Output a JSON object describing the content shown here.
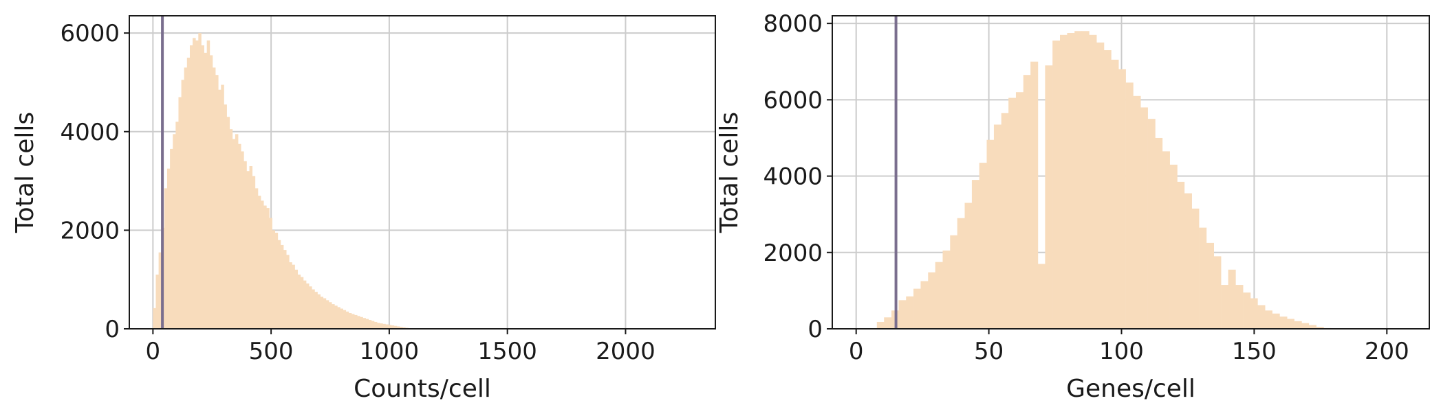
{
  "chart_data": [
    {
      "type": "bar",
      "xlabel": "Counts/cell",
      "ylabel": "Total cells",
      "xlim": [
        -100,
        2380
      ],
      "ylim": [
        0,
        6350
      ],
      "xticks": [
        0,
        500,
        1000,
        1500,
        2000
      ],
      "yticks": [
        0,
        2000,
        4000,
        6000
      ],
      "grid": true,
      "bar_color": "#f8dcbc",
      "threshold_color": "#7a6e8e",
      "threshold": 40,
      "bin_width": 12,
      "bins_x": [
        0,
        12,
        24,
        36,
        48,
        60,
        72,
        84,
        96,
        108,
        120,
        132,
        144,
        156,
        168,
        180,
        192,
        204,
        216,
        228,
        240,
        252,
        264,
        276,
        288,
        300,
        312,
        324,
        336,
        348,
        360,
        372,
        384,
        396,
        408,
        420,
        432,
        444,
        456,
        468,
        480,
        492,
        504,
        516,
        528,
        540,
        552,
        564,
        576,
        588,
        600,
        612,
        624,
        636,
        648,
        660,
        672,
        684,
        696,
        708,
        720,
        732,
        744,
        756,
        768,
        780,
        792,
        804,
        816,
        828,
        840,
        852,
        864,
        876,
        888,
        900,
        912,
        924,
        936,
        948,
        960,
        972,
        984,
        996,
        1008,
        1020,
        1032,
        1044,
        1056,
        1068,
        1080,
        1092,
        1104
      ],
      "values": [
        420,
        1100,
        1550,
        2050,
        2850,
        3250,
        3650,
        3950,
        4200,
        4700,
        5050,
        5300,
        5500,
        5750,
        5900,
        5850,
        6000,
        5750,
        5600,
        5850,
        5550,
        5300,
        5150,
        4850,
        4950,
        4550,
        4300,
        4050,
        3850,
        3950,
        3750,
        3600,
        3400,
        3200,
        3300,
        3100,
        2850,
        2700,
        2600,
        2500,
        2450,
        2250,
        2000,
        1950,
        1800,
        1700,
        1600,
        1500,
        1350,
        1300,
        1200,
        1100,
        1050,
        980,
        920,
        860,
        800,
        750,
        700,
        650,
        620,
        580,
        540,
        500,
        470,
        440,
        410,
        380,
        350,
        320,
        300,
        280,
        260,
        240,
        220,
        200,
        180,
        160,
        140,
        120,
        110,
        100,
        90,
        80,
        70,
        60,
        50,
        40,
        30,
        20,
        10,
        5,
        2
      ]
    },
    {
      "type": "bar",
      "xlabel": "Genes/cell",
      "ylabel": "Total cells",
      "xlim": [
        -9,
        216
      ],
      "ylim": [
        0,
        8200
      ],
      "xticks": [
        0,
        50,
        100,
        150,
        200
      ],
      "yticks": [
        0,
        2000,
        4000,
        6000,
        8000
      ],
      "grid": true,
      "bar_color": "#f8dcbc",
      "threshold_color": "#7a6e8e",
      "threshold": 15,
      "bin_width": 2.76,
      "bins_x": [
        5.0,
        7.8,
        10.5,
        13.3,
        16.0,
        18.8,
        21.6,
        24.3,
        27.1,
        29.8,
        32.6,
        35.4,
        38.1,
        40.9,
        43.6,
        46.4,
        49.2,
        51.9,
        54.7,
        57.4,
        60.2,
        63.0,
        65.7,
        68.5,
        71.2,
        74.0,
        76.8,
        79.5,
        82.3,
        85.0,
        87.8,
        90.6,
        93.3,
        96.1,
        98.8,
        101.6,
        104.4,
        107.1,
        109.9,
        112.6,
        115.4,
        118.2,
        120.9,
        123.7,
        126.4,
        129.2,
        132.0,
        134.7,
        137.5,
        140.2,
        143.0,
        145.8,
        148.5,
        151.3,
        154.0,
        156.8,
        159.6,
        162.3,
        165.1,
        167.8,
        170.6,
        173.4,
        176.1
      ],
      "values": [
        10,
        180,
        300,
        480,
        750,
        850,
        1050,
        1250,
        1480,
        1750,
        2050,
        2450,
        2900,
        3300,
        3900,
        4350,
        4950,
        5350,
        5650,
        6050,
        6200,
        6650,
        7000,
        1700,
        6900,
        7550,
        7700,
        7750,
        7800,
        7800,
        7700,
        7500,
        7300,
        7050,
        6800,
        6450,
        6100,
        5800,
        5500,
        5000,
        4650,
        4300,
        3850,
        3550,
        3150,
        2650,
        2250,
        1900,
        1150,
        1550,
        1150,
        950,
        800,
        620,
        480,
        400,
        320,
        260,
        200,
        150,
        100,
        50,
        20
      ]
    }
  ]
}
